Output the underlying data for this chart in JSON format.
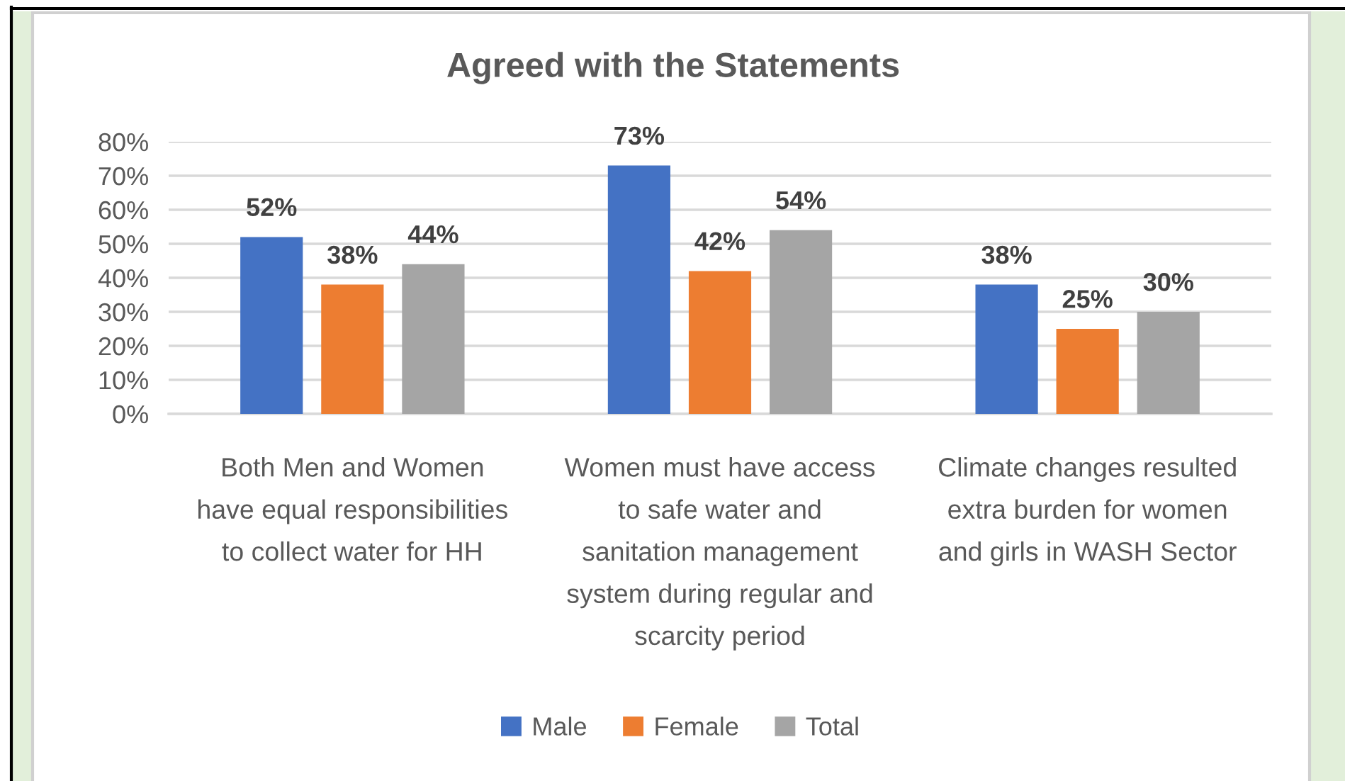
{
  "chart_data": {
    "type": "bar",
    "title": "Agreed with the Statements",
    "categories": [
      "Both Men and Women\nhave equal responsibilities\nto collect water for HH",
      "Women must have access\nto safe water and\nsanitation management\nsystem during regular and\nscarcity period",
      "Climate changes resulted\nextra burden for women\nand girls in WASH Sector"
    ],
    "series": [
      {
        "name": "Male",
        "color": "#4472c4",
        "values": [
          52,
          73,
          38
        ],
        "value_labels": [
          "52%",
          "73%",
          "38%"
        ]
      },
      {
        "name": "Female",
        "color": "#ed7d31",
        "values": [
          38,
          42,
          25
        ],
        "value_labels": [
          "38%",
          "42%",
          "25%"
        ]
      },
      {
        "name": "Total",
        "color": "#a5a5a5",
        "values": [
          44,
          54,
          30
        ],
        "value_labels": [
          "44%",
          "54%",
          "30%"
        ]
      }
    ],
    "ylim": [
      0,
      80
    ],
    "yticks": [
      {
        "value": 0,
        "label": "0%"
      },
      {
        "value": 10,
        "label": "10%"
      },
      {
        "value": 20,
        "label": "20%"
      },
      {
        "value": 30,
        "label": "30%"
      },
      {
        "value": 40,
        "label": "40%"
      },
      {
        "value": 50,
        "label": "50%"
      },
      {
        "value": 60,
        "label": "60%"
      },
      {
        "value": 70,
        "label": "70%"
      },
      {
        "value": 80,
        "label": "80%"
      }
    ],
    "grid": "y",
    "legend": "bottom"
  }
}
